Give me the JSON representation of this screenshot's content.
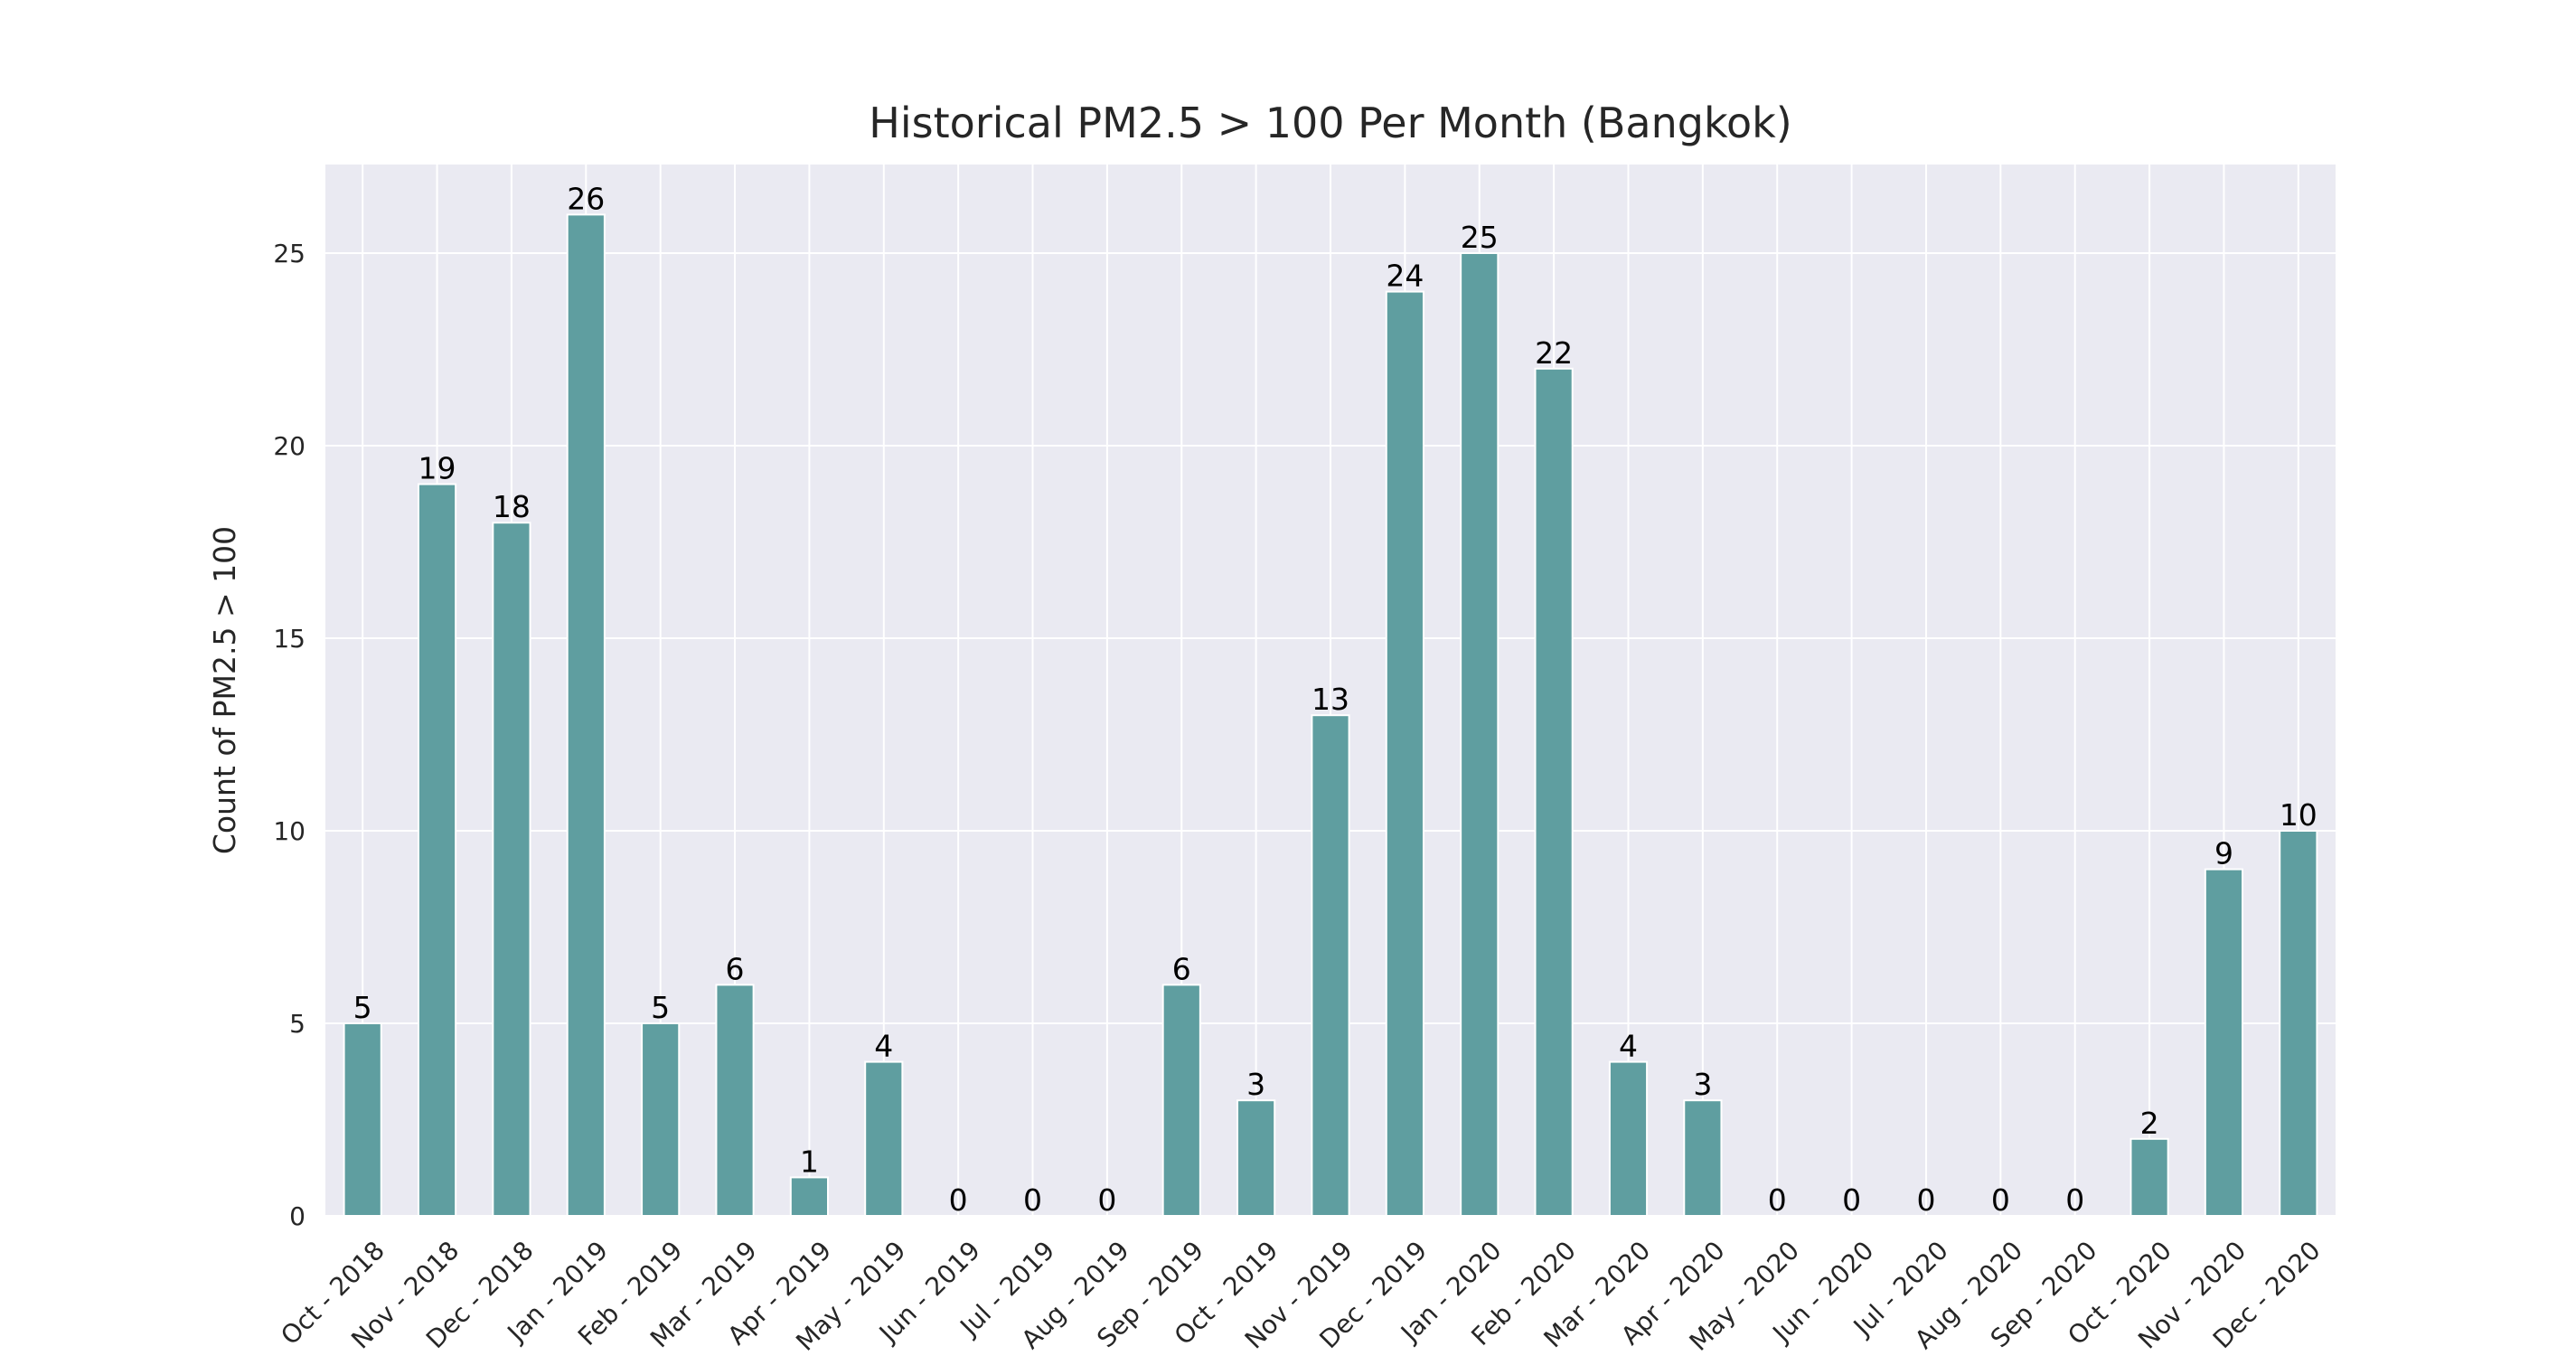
{
  "chart_data": {
    "type": "bar",
    "title": "Historical PM2.5 > 100 Per Month (Bangkok)",
    "xlabel": "",
    "ylabel": "Count of PM2.5 > 100",
    "categories": [
      "Oct - 2018",
      "Nov - 2018",
      "Dec - 2018",
      "Jan - 2019",
      "Feb - 2019",
      "Mar - 2019",
      "Apr - 2019",
      "May - 2019",
      "Jun - 2019",
      "Jul - 2019",
      "Aug - 2019",
      "Sep - 2019",
      "Oct - 2019",
      "Nov - 2019",
      "Dec - 2019",
      "Jan - 2020",
      "Feb - 2020",
      "Mar - 2020",
      "Apr - 2020",
      "May - 2020",
      "Jun - 2020",
      "Jul - 2020",
      "Aug - 2020",
      "Sep - 2020",
      "Oct - 2020",
      "Nov - 2020",
      "Dec - 2020"
    ],
    "values": [
      5,
      19,
      18,
      26,
      5,
      6,
      1,
      4,
      0,
      0,
      0,
      6,
      3,
      13,
      24,
      25,
      22,
      4,
      3,
      0,
      0,
      0,
      0,
      0,
      2,
      9,
      10
    ],
    "ylim": [
      0,
      27.3
    ],
    "yticks": [
      0,
      5,
      10,
      15,
      20,
      25
    ],
    "grid": true,
    "data_labels": true,
    "colors": {
      "bar": "#5f9ea0",
      "plot_background": "#eaeaf2",
      "grid": "#ffffff",
      "page_background": "#ffffff"
    }
  }
}
